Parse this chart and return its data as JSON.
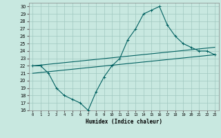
{
  "xlabel": "Humidex (Indice chaleur)",
  "xlim": [
    -0.5,
    23.5
  ],
  "ylim": [
    16,
    30.5
  ],
  "yticks": [
    16,
    17,
    18,
    19,
    20,
    21,
    22,
    23,
    24,
    25,
    26,
    27,
    28,
    29,
    30
  ],
  "xticks": [
    0,
    1,
    2,
    3,
    4,
    5,
    6,
    7,
    8,
    9,
    10,
    11,
    12,
    13,
    14,
    15,
    16,
    17,
    18,
    19,
    20,
    21,
    22,
    23
  ],
  "bg_color": "#c8e8e0",
  "line_color": "#006060",
  "grid_color": "#a0c8c0",
  "line1_x": [
    0,
    1,
    2,
    3,
    4,
    5,
    6,
    7,
    8,
    9,
    10,
    11,
    12,
    13,
    14,
    15,
    16,
    17,
    18,
    19,
    20,
    21,
    22,
    23
  ],
  "line1_y": [
    22,
    22,
    21,
    19,
    18,
    17.5,
    17,
    16,
    18.5,
    20.5,
    22,
    23,
    25.5,
    27,
    29,
    29.5,
    30,
    27.5,
    26,
    25,
    24.5,
    24,
    24,
    23.5
  ],
  "line2_x": [
    0,
    23
  ],
  "line2_y": [
    22,
    24.5
  ],
  "line3_x": [
    0,
    23
  ],
  "line3_y": [
    21,
    23.5
  ]
}
